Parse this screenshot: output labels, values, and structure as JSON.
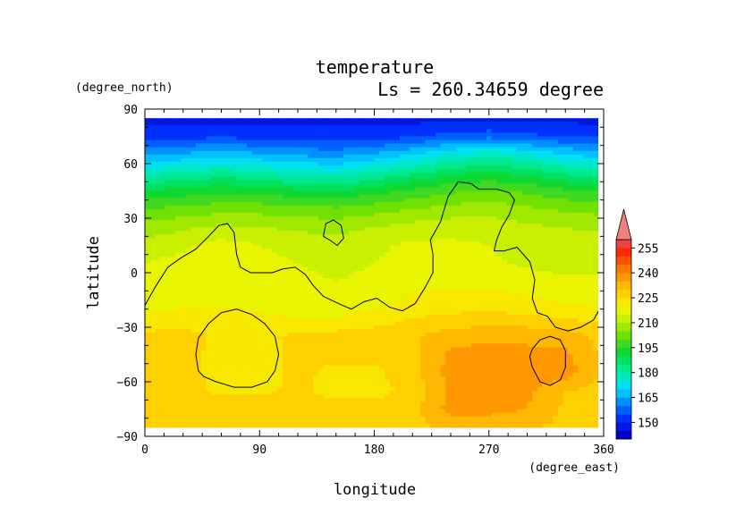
{
  "chart_data": {
    "type": "heatmap",
    "title": "temperature",
    "subtitle": "Ls = 260.34659 degree",
    "xlabel": "longitude",
    "ylabel": "latitude",
    "x_unit": "(degree_east)",
    "y_unit": "(degree_north)",
    "xlim": [
      0,
      360
    ],
    "ylim": [
      -90,
      90
    ],
    "x_ticks": [
      0,
      90,
      180,
      270,
      360
    ],
    "y_ticks": [
      90,
      60,
      30,
      0,
      -30,
      -60,
      -90
    ],
    "x_tick_labels": [
      "0",
      "90",
      "180",
      "270",
      "360"
    ],
    "y_tick_labels": [
      "90",
      "60",
      "30",
      "0",
      "−30",
      "−60",
      "−90"
    ],
    "colorbar": {
      "levels": [
        140,
        145,
        150,
        155,
        160,
        165,
        170,
        175,
        180,
        185,
        190,
        195,
        200,
        205,
        210,
        215,
        220,
        225,
        230,
        235,
        240,
        245,
        250,
        255,
        260
      ],
      "colors": [
        "#0000c8",
        "#0018e0",
        "#0030ff",
        "#0060ff",
        "#0090ff",
        "#00c0ff",
        "#00e0f0",
        "#00e8c0",
        "#00e890",
        "#00e060",
        "#10d830",
        "#40d820",
        "#70e000",
        "#a0e800",
        "#c8f000",
        "#e8f400",
        "#f8e800",
        "#ffd000",
        "#ffb800",
        "#ff9800",
        "#ff7800",
        "#ff5000",
        "#ff2800",
        "#f04040"
      ],
      "labels": [
        150,
        165,
        180,
        195,
        210,
        225,
        240,
        255
      ],
      "extend": "max"
    },
    "grid": {
      "lons": [
        0,
        30,
        60,
        90,
        120,
        150,
        180,
        210,
        240,
        270,
        300,
        330,
        360
      ],
      "lats": [
        85,
        75,
        65,
        55,
        45,
        35,
        25,
        15,
        5,
        -5,
        -15,
        -25,
        -35,
        -45,
        -55,
        -65,
        -75,
        -85
      ],
      "values": [
        [
          148,
          148,
          148,
          148,
          148,
          148,
          148,
          148,
          148,
          148,
          148,
          148,
          148
        ],
        [
          152,
          153,
          154,
          153,
          152,
          152,
          152,
          154,
          157,
          158,
          156,
          155,
          154
        ],
        [
          164,
          166,
          168,
          166,
          164,
          163,
          166,
          170,
          175,
          178,
          175,
          170,
          167
        ],
        [
          178,
          180,
          182,
          180,
          177,
          176,
          180,
          184,
          188,
          190,
          188,
          184,
          182
        ],
        [
          190,
          192,
          194,
          193,
          191,
          190,
          193,
          196,
          199,
          201,
          199,
          196,
          194
        ],
        [
          200,
          202,
          203,
          203,
          202,
          201,
          203,
          205,
          207,
          208,
          206,
          204,
          203
        ],
        [
          207,
          209,
          211,
          210,
          209,
          208,
          210,
          212,
          213,
          213,
          211,
          210,
          209
        ],
        [
          212,
          214,
          217,
          215,
          213,
          212,
          214,
          216,
          216,
          215,
          213,
          212,
          212
        ],
        [
          215,
          217,
          219,
          217,
          215,
          214,
          215,
          217,
          217,
          216,
          214,
          213,
          214
        ],
        [
          216,
          217,
          219,
          218,
          216,
          215,
          216,
          218,
          219,
          219,
          218,
          216,
          216
        ],
        [
          217,
          218,
          219,
          218,
          217,
          217,
          218,
          221,
          222,
          222,
          221,
          219,
          218
        ],
        [
          222,
          222,
          222,
          221,
          220,
          220,
          222,
          225,
          226,
          227,
          226,
          225,
          223
        ],
        [
          226,
          227,
          224,
          224,
          226,
          227,
          228,
          229,
          233,
          234,
          234,
          233,
          228
        ],
        [
          226,
          227,
          223,
          223,
          226,
          226,
          226,
          229,
          236,
          237,
          236,
          236,
          229
        ],
        [
          226,
          227,
          223,
          223,
          226,
          224,
          224,
          228,
          237,
          237,
          237,
          238,
          229
        ],
        [
          226,
          227,
          224,
          224,
          226,
          223,
          223,
          227,
          236,
          238,
          236,
          230,
          228
        ],
        [
          227,
          227,
          228,
          228,
          228,
          227,
          227,
          228,
          237,
          237,
          235,
          229,
          229
        ],
        [
          228,
          228,
          228,
          228,
          228,
          228,
          228,
          229,
          231,
          231,
          230,
          229,
          228
        ]
      ]
    },
    "contours": [
      [
        [
          0,
          -18
        ],
        [
          8,
          -8
        ],
        [
          18,
          3
        ],
        [
          28,
          8
        ],
        [
          40,
          13
        ],
        [
          50,
          20
        ],
        [
          58,
          26
        ],
        [
          65,
          27
        ],
        [
          70,
          22
        ],
        [
          72,
          10
        ],
        [
          75,
          3
        ],
        [
          83,
          0
        ],
        [
          100,
          0
        ],
        [
          108,
          2
        ],
        [
          118,
          3
        ],
        [
          126,
          -1
        ],
        [
          132,
          -7
        ],
        [
          140,
          -13
        ],
        [
          152,
          -17
        ],
        [
          162,
          -20
        ],
        [
          172,
          -16
        ],
        [
          182,
          -14
        ],
        [
          192,
          -19
        ],
        [
          202,
          -21
        ],
        [
          212,
          -17
        ],
        [
          220,
          -8
        ],
        [
          226,
          0
        ],
        [
          226,
          10
        ],
        [
          224,
          18
        ],
        [
          232,
          28
        ],
        [
          238,
          42
        ],
        [
          246,
          50
        ],
        [
          256,
          49
        ],
        [
          262,
          46
        ],
        [
          276,
          46
        ],
        [
          286,
          44
        ],
        [
          290,
          40
        ],
        [
          286,
          32
        ],
        [
          280,
          25
        ],
        [
          276,
          18
        ],
        [
          274,
          12
        ],
        [
          282,
          12
        ],
        [
          292,
          14
        ],
        [
          302,
          6
        ],
        [
          306,
          -4
        ],
        [
          304,
          -14
        ],
        [
          308,
          -22
        ],
        [
          316,
          -24
        ],
        [
          322,
          -30
        ],
        [
          332,
          -32
        ],
        [
          342,
          -30
        ],
        [
          352,
          -26
        ],
        [
          356,
          -21
        ]
      ],
      [
        [
          140,
          20
        ],
        [
          142,
          27
        ],
        [
          148,
          29
        ],
        [
          154,
          26
        ],
        [
          156,
          19
        ],
        [
          151,
          15
        ],
        [
          145,
          18
        ],
        [
          140,
          20
        ]
      ],
      [
        [
          42,
          -54
        ],
        [
          40,
          -45
        ],
        [
          42,
          -36
        ],
        [
          50,
          -28
        ],
        [
          60,
          -22
        ],
        [
          72,
          -20
        ],
        [
          84,
          -23
        ],
        [
          94,
          -28
        ],
        [
          102,
          -35
        ],
        [
          105,
          -45
        ],
        [
          102,
          -54
        ],
        [
          96,
          -60
        ],
        [
          84,
          -63
        ],
        [
          70,
          -63
        ],
        [
          56,
          -60
        ],
        [
          46,
          -57
        ],
        [
          42,
          -54
        ]
      ],
      [
        [
          304,
          -52
        ],
        [
          302,
          -46
        ],
        [
          304,
          -42
        ],
        [
          310,
          -37
        ],
        [
          318,
          -35
        ],
        [
          326,
          -37
        ],
        [
          330,
          -43
        ],
        [
          330,
          -52
        ],
        [
          326,
          -59
        ],
        [
          318,
          -62
        ],
        [
          310,
          -60
        ],
        [
          304,
          -52
        ]
      ]
    ]
  }
}
